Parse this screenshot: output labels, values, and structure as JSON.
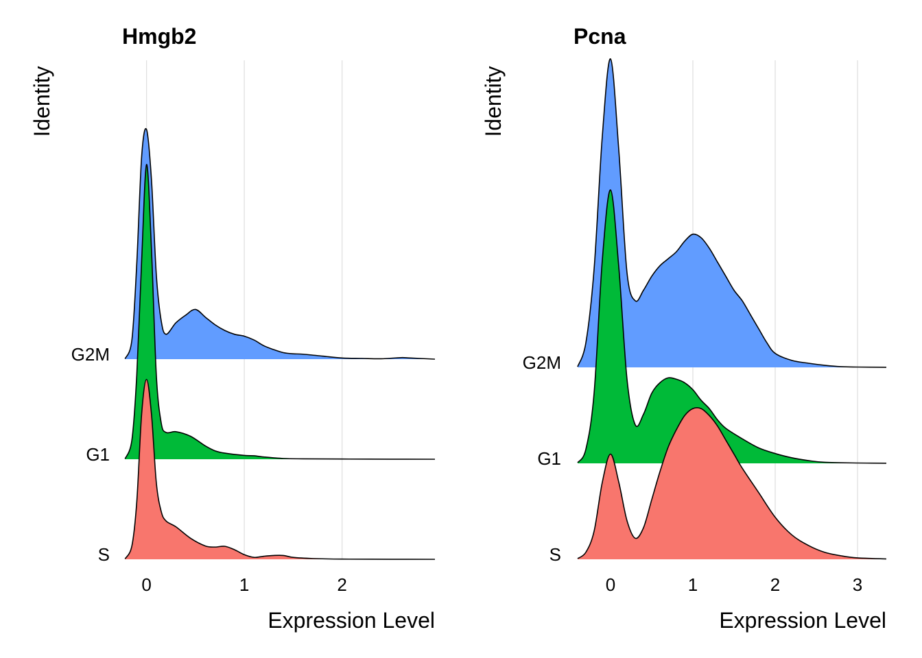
{
  "chart_data": [
    {
      "type": "ridgeline",
      "title": "Hmgb2",
      "xlabel": "Expression Level",
      "ylabel": "Identity",
      "xlim": [
        -0.25,
        2.95
      ],
      "xticks": [
        0,
        1,
        2
      ],
      "grid": true,
      "categories": [
        "S",
        "G1",
        "G2M"
      ],
      "series": [
        {
          "name": "S",
          "color": "#F8766D",
          "x": [
            -0.22,
            -0.15,
            -0.1,
            -0.05,
            0,
            0.05,
            0.1,
            0.15,
            0.2,
            0.3,
            0.45,
            0.6,
            0.7,
            0.8,
            0.9,
            1.0,
            1.1,
            1.2,
            1.3,
            1.4,
            1.5,
            1.7,
            2.0,
            2.5,
            2.95
          ],
          "y": [
            0.01,
            0.35,
            1.5,
            3.8,
            4.7,
            3.8,
            2.0,
            1.25,
            1.0,
            0.85,
            0.55,
            0.35,
            0.32,
            0.34,
            0.25,
            0.12,
            0.05,
            0.08,
            0.1,
            0.1,
            0.05,
            0.02,
            0.005,
            0.002,
            0.0
          ]
        },
        {
          "name": "G1",
          "color": "#00BA38",
          "x": [
            -0.22,
            -0.15,
            -0.1,
            -0.05,
            0,
            0.05,
            0.1,
            0.15,
            0.2,
            0.3,
            0.45,
            0.6,
            0.7,
            0.8,
            1.0,
            1.1,
            1.2,
            1.4,
            1.6,
            2.0,
            2.5,
            2.95
          ],
          "y": [
            0.01,
            0.5,
            2.2,
            5.2,
            7.7,
            5.5,
            2.2,
            0.95,
            0.7,
            0.72,
            0.6,
            0.35,
            0.22,
            0.16,
            0.1,
            0.09,
            0.06,
            0.02,
            0.01,
            0.005,
            0.002,
            0.0
          ]
        },
        {
          "name": "G2M",
          "color": "#619CFF",
          "x": [
            -0.22,
            -0.15,
            -0.1,
            -0.05,
            0,
            0.05,
            0.1,
            0.15,
            0.2,
            0.3,
            0.4,
            0.5,
            0.6,
            0.7,
            0.8,
            0.9,
            1.0,
            1.1,
            1.2,
            1.3,
            1.4,
            1.5,
            1.6,
            1.8,
            2.0,
            2.2,
            2.4,
            2.6,
            2.7,
            2.95
          ],
          "y": [
            0.01,
            0.5,
            2.5,
            5.3,
            6.0,
            4.7,
            2.2,
            1.0,
            0.65,
            0.95,
            1.15,
            1.3,
            1.1,
            0.9,
            0.75,
            0.65,
            0.6,
            0.5,
            0.35,
            0.25,
            0.17,
            0.14,
            0.13,
            0.08,
            0.03,
            0.02,
            0.01,
            0.04,
            0.03,
            0.0
          ]
        }
      ]
    },
    {
      "type": "ridgeline",
      "title": "Pcna",
      "xlabel": "Expression Level",
      "ylabel": "Identity",
      "xlim": [
        -0.45,
        3.35
      ],
      "xticks": [
        0,
        1,
        2,
        3
      ],
      "grid": true,
      "categories": [
        "S",
        "G1",
        "G2M"
      ],
      "series": [
        {
          "name": "S",
          "color": "#F8766D",
          "x": [
            -0.4,
            -0.3,
            -0.2,
            -0.1,
            0,
            0.1,
            0.2,
            0.3,
            0.4,
            0.5,
            0.6,
            0.7,
            0.8,
            0.9,
            1.0,
            1.1,
            1.2,
            1.3,
            1.4,
            1.5,
            1.6,
            1.8,
            2.0,
            2.2,
            2.4,
            2.6,
            2.8,
            3.0,
            3.35
          ],
          "y": [
            0.01,
            0.1,
            0.4,
            1.1,
            1.5,
            1.1,
            0.55,
            0.3,
            0.45,
            0.85,
            1.25,
            1.6,
            1.85,
            2.05,
            2.15,
            2.15,
            2.05,
            1.9,
            1.7,
            1.5,
            1.3,
            0.95,
            0.6,
            0.35,
            0.2,
            0.1,
            0.05,
            0.02,
            0.005
          ]
        },
        {
          "name": "G1",
          "color": "#00BA38",
          "x": [
            -0.4,
            -0.3,
            -0.2,
            -0.1,
            0,
            0.1,
            0.2,
            0.3,
            0.4,
            0.5,
            0.6,
            0.7,
            0.8,
            0.9,
            1.0,
            1.1,
            1.2,
            1.3,
            1.4,
            1.6,
            1.8,
            2.0,
            2.2,
            2.4,
            2.6,
            3.0,
            3.35
          ],
          "y": [
            0.01,
            0.2,
            1.0,
            2.9,
            3.9,
            2.8,
            1.2,
            0.55,
            0.7,
            1.0,
            1.15,
            1.22,
            1.2,
            1.15,
            1.05,
            0.9,
            0.78,
            0.62,
            0.5,
            0.35,
            0.22,
            0.14,
            0.08,
            0.04,
            0.015,
            0.005,
            0.002
          ]
        },
        {
          "name": "G2M",
          "color": "#619CFF",
          "x": [
            -0.4,
            -0.3,
            -0.2,
            -0.1,
            0,
            0.1,
            0.2,
            0.3,
            0.4,
            0.5,
            0.6,
            0.7,
            0.8,
            0.9,
            1.0,
            1.1,
            1.2,
            1.3,
            1.4,
            1.5,
            1.6,
            1.7,
            1.8,
            1.9,
            2.0,
            2.2,
            2.4,
            2.6,
            2.8,
            3.0,
            3.35
          ],
          "y": [
            0.01,
            0.35,
            1.4,
            3.3,
            4.4,
            3.1,
            1.35,
            0.95,
            1.1,
            1.3,
            1.45,
            1.55,
            1.65,
            1.8,
            1.9,
            1.85,
            1.7,
            1.5,
            1.3,
            1.1,
            0.95,
            0.75,
            0.55,
            0.35,
            0.2,
            0.1,
            0.06,
            0.03,
            0.01,
            0.005,
            0.002
          ]
        }
      ]
    }
  ]
}
